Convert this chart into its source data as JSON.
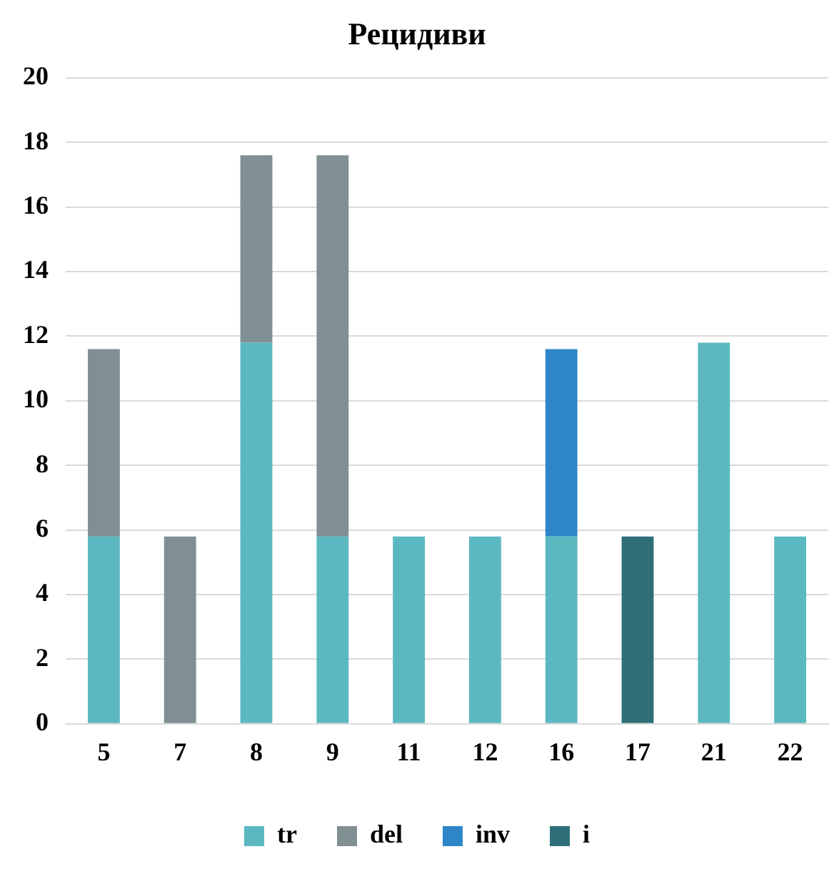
{
  "chart_data": {
    "type": "bar",
    "title": "Рецидиви",
    "stacked": true,
    "categories": [
      "5",
      "7",
      "8",
      "9",
      "11",
      "12",
      "16",
      "17",
      "21",
      "22"
    ],
    "series": [
      {
        "name": "tr",
        "color": "#5bb8c1",
        "values": [
          5.8,
          0,
          11.8,
          5.8,
          5.8,
          5.8,
          5.8,
          0,
          11.8,
          5.8
        ]
      },
      {
        "name": "del",
        "color": "#7f8f92",
        "values": [
          5.8,
          5.8,
          5.8,
          11.8,
          0,
          0,
          0,
          0,
          0,
          0
        ]
      },
      {
        "name": "inv",
        "color": "#2e86c8",
        "values": [
          0,
          0,
          0,
          0,
          0,
          0,
          5.8,
          0,
          0,
          0
        ]
      },
      {
        "name": "i",
        "color": "#2e6f78",
        "values": [
          0,
          0,
          0,
          0,
          0,
          0,
          0,
          5.8,
          0,
          0
        ]
      }
    ],
    "ylim": [
      0,
      20
    ],
    "yticks": [
      0,
      2,
      4,
      6,
      8,
      10,
      12,
      14,
      16,
      18,
      20
    ],
    "grid": "y",
    "legend": "bottom"
  }
}
